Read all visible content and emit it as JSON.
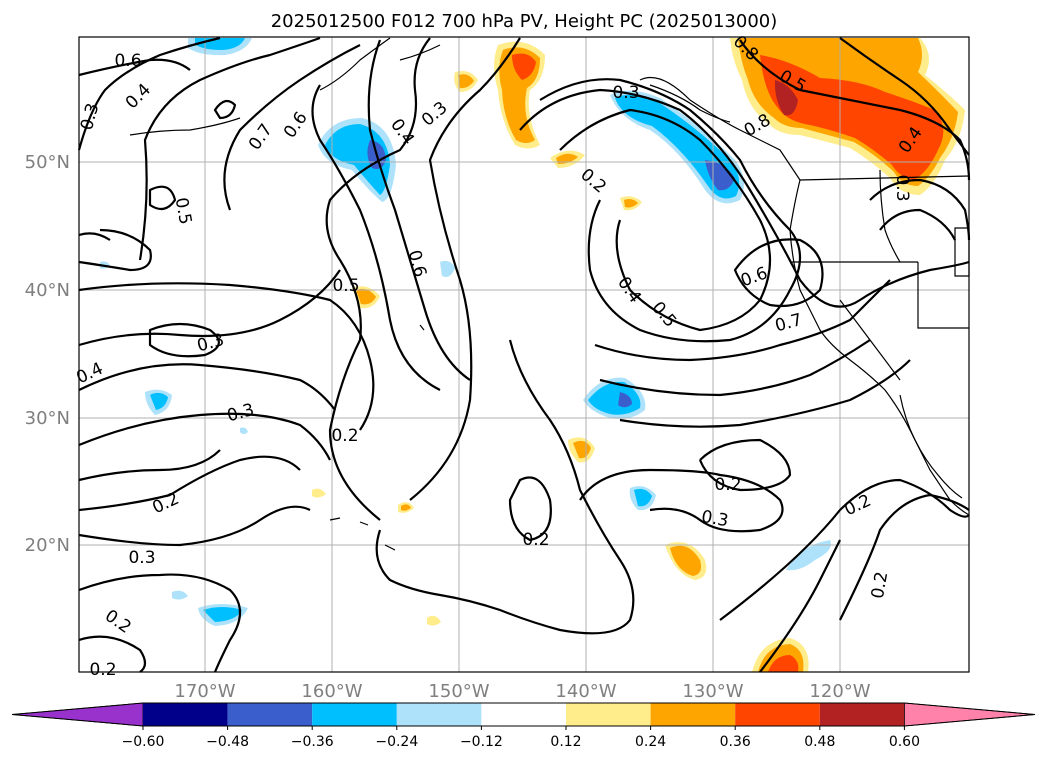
{
  "title": "2025012500 F012 700 hPa PV, Height PC (2025013000)",
  "map": {
    "lat_labels": [
      "50°N",
      "40°N",
      "30°N",
      "20°N"
    ],
    "lon_labels": [
      "170°W",
      "160°W",
      "150°W",
      "140°W",
      "130°W",
      "120°W"
    ]
  },
  "colorbar": {
    "ticks": [
      "−0.60",
      "−0.48",
      "−0.36",
      "−0.24",
      "−0.12",
      "0.12",
      "0.24",
      "0.36",
      "0.48",
      "0.60"
    ],
    "colors": [
      "#9932CC",
      "#00008B",
      "#3A5FCD",
      "#00BFFF",
      "#ADE2FA",
      "#FFFFFF",
      "#FFEC8B",
      "#FFA500",
      "#FF4500",
      "#B22222",
      "#FF82AB"
    ]
  },
  "contour_labels": [
    {
      "text": "0.6"
    },
    {
      "text": "0.3"
    },
    {
      "text": "0.4"
    },
    {
      "text": "0.7"
    },
    {
      "text": "0.6"
    },
    {
      "text": "0.4"
    },
    {
      "text": "0.3"
    },
    {
      "text": "0.5"
    },
    {
      "text": "0.6"
    },
    {
      "text": "0.5"
    },
    {
      "text": "0.3"
    },
    {
      "text": "0.4"
    },
    {
      "text": "0.3"
    },
    {
      "text": "0.2"
    },
    {
      "text": "0.2"
    },
    {
      "text": "0.3"
    },
    {
      "text": "0.2"
    },
    {
      "text": "0.2"
    },
    {
      "text": "0.2"
    },
    {
      "text": "0.2"
    },
    {
      "text": "0.3"
    },
    {
      "text": "0.4"
    },
    {
      "text": "0.5"
    },
    {
      "text": "0.6"
    },
    {
      "text": "0.7"
    },
    {
      "text": "0.2"
    },
    {
      "text": "0.2"
    },
    {
      "text": "0.3"
    },
    {
      "text": "0.5"
    },
    {
      "text": "0.4"
    },
    {
      "text": "0.3"
    },
    {
      "text": "0.8"
    },
    {
      "text": "0.2"
    },
    {
      "text": "0.2"
    }
  ]
}
